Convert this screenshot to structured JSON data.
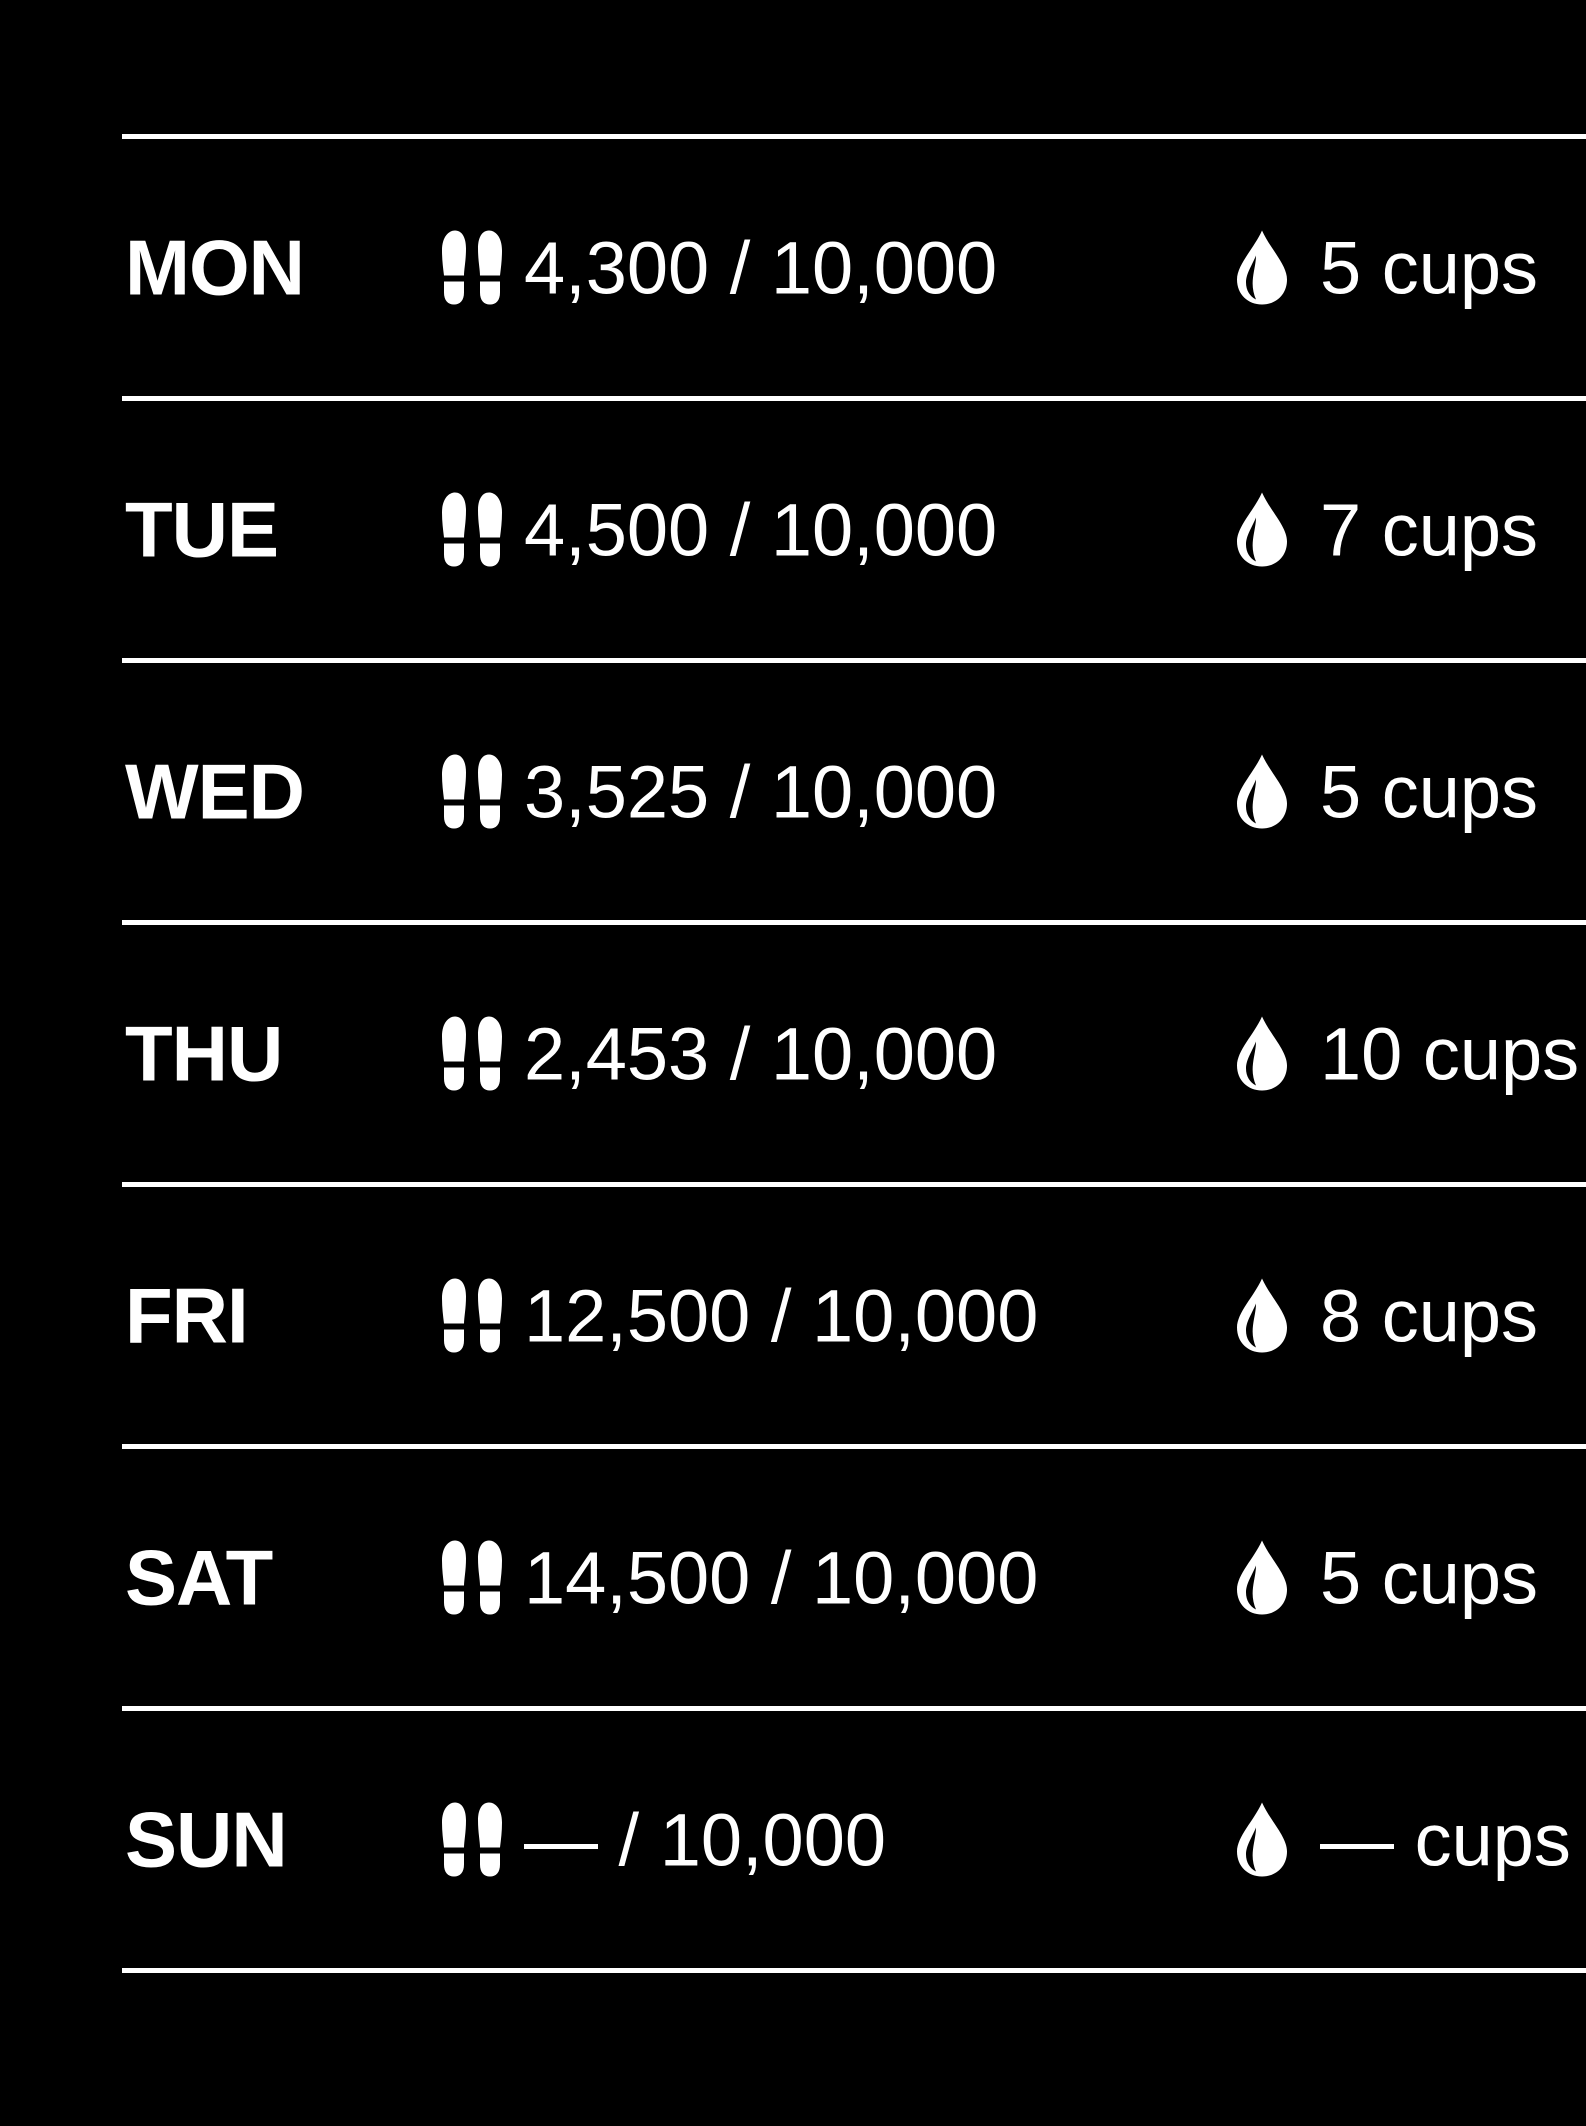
{
  "colors": {
    "background": "#000000",
    "foreground": "#ffffff"
  },
  "icons": {
    "steps": "footprints-icon",
    "water": "water-drop-icon"
  },
  "days": [
    {
      "day": "MON",
      "steps": "4,300",
      "steps_goal": "10,000",
      "cups": "5",
      "cups_unit": "cups"
    },
    {
      "day": "TUE",
      "steps": "4,500",
      "steps_goal": "10,000",
      "cups": "7",
      "cups_unit": "cups"
    },
    {
      "day": "WED",
      "steps": "3,525",
      "steps_goal": "10,000",
      "cups": "5",
      "cups_unit": "cups"
    },
    {
      "day": "THU",
      "steps": "2,453",
      "steps_goal": "10,000",
      "cups": "10",
      "cups_unit": "cups"
    },
    {
      "day": "FRI",
      "steps": "12,500",
      "steps_goal": "10,000",
      "cups": "8",
      "cups_unit": "cups"
    },
    {
      "day": "SAT",
      "steps": "14,500",
      "steps_goal": "10,000",
      "cups": "5",
      "cups_unit": "cups"
    },
    {
      "day": "SUN",
      "steps": "—",
      "steps_goal": "10,000",
      "cups": "—",
      "cups_unit": "cups"
    }
  ]
}
